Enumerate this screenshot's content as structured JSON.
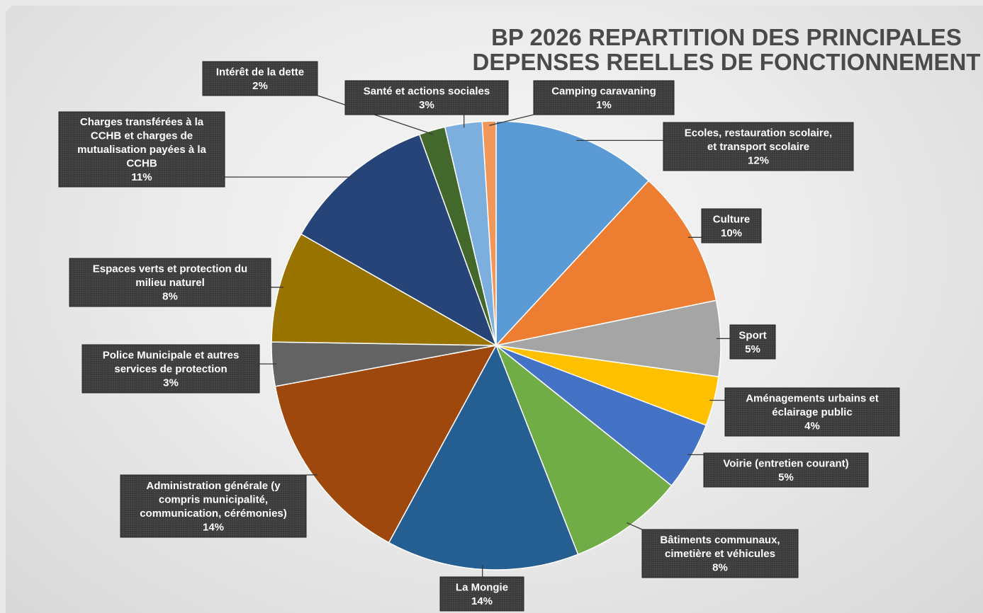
{
  "chart_data": {
    "type": "pie",
    "title_lines": [
      "BP 2026 REPARTITION DES PRINCIPALES",
      "DEPENSES REELLES DE FONCTIONNEMENT"
    ],
    "slices": [
      {
        "label_lines": [
          "Ecoles, restauration scolaire,",
          "et transport scolaire"
        ],
        "percent_label": "12%",
        "value": 12,
        "color": "#5b9bd5"
      },
      {
        "label_lines": [
          "Culture"
        ],
        "percent_label": "10%",
        "value": 10,
        "color": "#ed7d31"
      },
      {
        "label_lines": [
          "Sport"
        ],
        "percent_label": "5%",
        "value": 5.5,
        "color": "#a5a5a5"
      },
      {
        "label_lines": [
          "Aménagements urbains et",
          "éclairage public"
        ],
        "percent_label": "4%",
        "value": 3.6,
        "color": "#ffc000"
      },
      {
        "label_lines": [
          "Voirie (entretien courant)"
        ],
        "percent_label": "5%",
        "value": 5,
        "color": "#4472c4"
      },
      {
        "label_lines": [
          "Bâtiments communaux,",
          "cimetière et véhicules"
        ],
        "percent_label": "8%",
        "value": 8.4,
        "color": "#70ad47"
      },
      {
        "label_lines": [
          "La Mongie"
        ],
        "percent_label": "14%",
        "value": 14,
        "color": "#255e91"
      },
      {
        "label_lines": [
          "Administration générale (y",
          "compris municipalité,",
          "communication, cérémonies)"
        ],
        "percent_label": "14%",
        "value": 14.3,
        "color": "#9e480e"
      },
      {
        "label_lines": [
          "Police Municipale et autres",
          "services de protection"
        ],
        "percent_label": "3%",
        "value": 3.2,
        "color": "#636363"
      },
      {
        "label_lines": [
          "Espaces verts et protection du",
          "milieu naturel"
        ],
        "percent_label": "8%",
        "value": 8.1,
        "color": "#997300"
      },
      {
        "label_lines": [
          "Charges transférées à la",
          "CCHB et charges de",
          "mutualisation payées à la",
          "CCHB"
        ],
        "percent_label": "11%",
        "value": 11.3,
        "color": "#264478"
      },
      {
        "label_lines": [
          "Intérêt de la dette"
        ],
        "percent_label": "2%",
        "value": 1.9,
        "color": "#43682b"
      },
      {
        "label_lines": [
          "Santé et actions sociales"
        ],
        "percent_label": "3%",
        "value": 2.7,
        "color": "#7cafdd"
      },
      {
        "label_lines": [
          "Camping caravaning"
        ],
        "percent_label": "1%",
        "value": 1.0,
        "color": "#f1975a"
      }
    ]
  }
}
